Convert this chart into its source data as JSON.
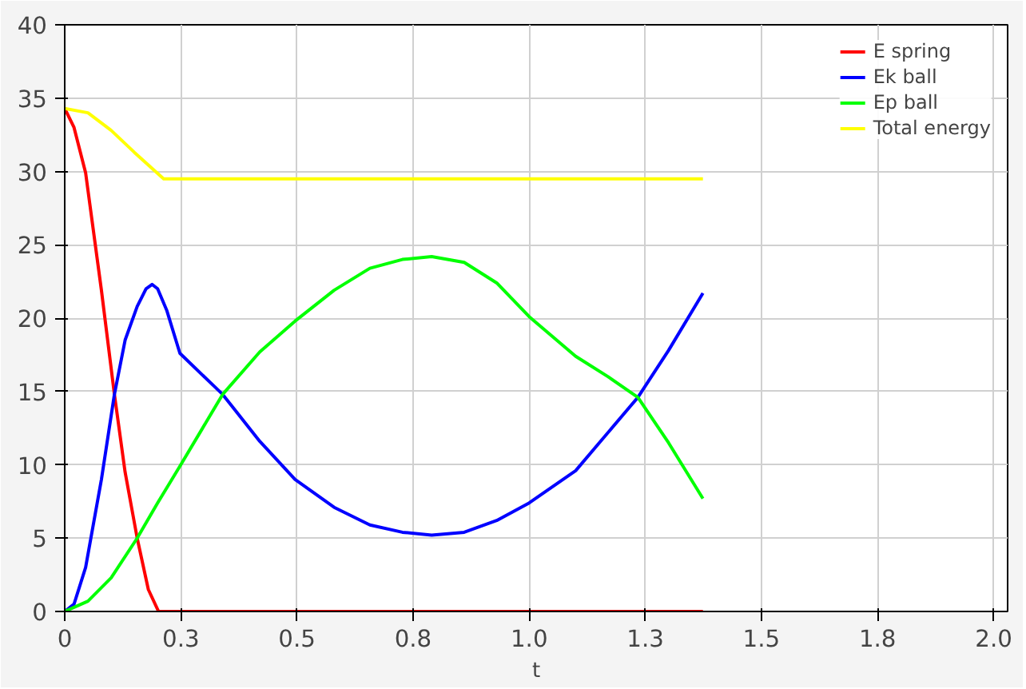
{
  "chart_data": {
    "type": "line",
    "xlabel": "t",
    "xlim": [
      0,
      2.03
    ],
    "ylim": [
      0,
      40
    ],
    "xticks": [
      0,
      {
        "value": 0.25,
        "label": "0.3"
      },
      0.5,
      {
        "value": 0.75,
        "label": "0.8"
      },
      {
        "value": 1,
        "label": "1.0"
      },
      {
        "value": 1.25,
        "label": "1.3"
      },
      1.5,
      {
        "value": 1.75,
        "label": "1.8"
      },
      {
        "value": 2,
        "label": "2.0"
      }
    ],
    "yticks": [
      0,
      5,
      10,
      15,
      20,
      25,
      30,
      35,
      40
    ],
    "grid": true,
    "legend": "top right",
    "marker": "none",
    "line_style": "solid",
    "series": [
      {
        "name": "E spring",
        "color": "#ff0000",
        "x": [
          0,
          0.02,
          0.045,
          0.079,
          0.107,
          0.13,
          0.156,
          0.18,
          0.202,
          1.374
        ],
        "values": [
          34.3,
          33.0,
          29.9,
          21.9,
          14.8,
          9.5,
          5.0,
          1.5,
          0,
          0
        ]
      },
      {
        "name": "Ek ball",
        "color": "#0000ff",
        "x": [
          0,
          0.02,
          0.045,
          0.079,
          0.107,
          0.13,
          0.156,
          0.175,
          0.188,
          0.2,
          0.22,
          0.248,
          0.34,
          0.42,
          0.496,
          0.58,
          0.657,
          0.727,
          0.79,
          0.86,
          0.93,
          1.0,
          1.1,
          1.234,
          1.3,
          1.374
        ],
        "values": [
          0,
          0.5,
          3,
          9,
          14.8,
          18.5,
          20.8,
          22.0,
          22.3,
          22.0,
          20.5,
          17.6,
          14.8,
          11.6,
          9.0,
          7.1,
          5.9,
          5.4,
          5.2,
          5.4,
          6.2,
          7.4,
          9.6,
          14.6,
          17.8,
          21.7
        ]
      },
      {
        "name": "Ep ball",
        "color": "#00ff00",
        "x": [
          0,
          0.05,
          0.1,
          0.156,
          0.2,
          0.248,
          0.34,
          0.42,
          0.496,
          0.58,
          0.657,
          0.727,
          0.79,
          0.86,
          0.93,
          1.0,
          1.1,
          1.17,
          1.234,
          1.3,
          1.374
        ],
        "values": [
          0,
          0.7,
          2.3,
          5.0,
          7.4,
          9.9,
          14.8,
          17.7,
          19.8,
          21.9,
          23.4,
          24.0,
          24.2,
          23.8,
          22.4,
          20.1,
          17.4,
          16.0,
          14.6,
          11.5,
          7.7
        ]
      },
      {
        "name": "Total energy",
        "color": "#ffff00",
        "x": [
          0,
          0.05,
          0.1,
          0.15,
          0.213,
          1.374
        ],
        "values": [
          34.3,
          34.0,
          32.8,
          31.3,
          29.5,
          29.5
        ]
      }
    ]
  }
}
